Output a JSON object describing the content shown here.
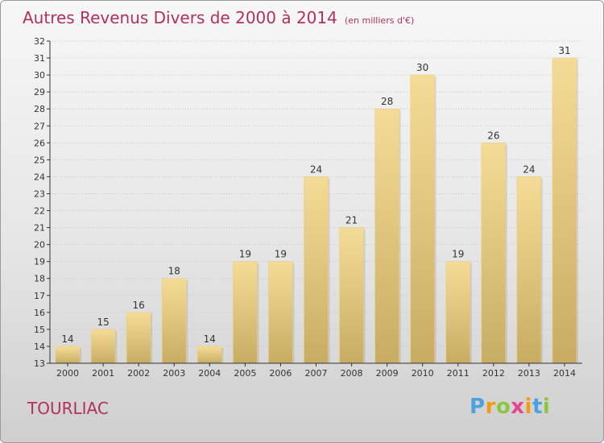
{
  "title": "Autres Revenus Divers de 2000 à 2014",
  "subtitle": "(en milliers d'€)",
  "commune": "TOURLIAC",
  "logo": {
    "text": "Proxiti",
    "letter_colors": [
      "#4aa3df",
      "#f39c12",
      "#8dc63f",
      "#e84393",
      "#f39c12",
      "#4aa3df",
      "#8dc63f"
    ]
  },
  "colors": {
    "title": "#b03060",
    "bar_light": "#f5dc96",
    "bar_dark": "#c8ac64",
    "axis": "#333333",
    "grid": "#c8c8c8"
  },
  "chart_data": {
    "type": "bar",
    "categories": [
      "2000",
      "2001",
      "2002",
      "2003",
      "2004",
      "2005",
      "2006",
      "2007",
      "2008",
      "2009",
      "2010",
      "2011",
      "2012",
      "2013",
      "2014"
    ],
    "values": [
      14,
      15,
      16,
      18,
      14,
      19,
      19,
      24,
      21,
      28,
      30,
      19,
      26,
      24,
      31
    ],
    "ylim": [
      13,
      32
    ],
    "yticks": [
      13,
      14,
      15,
      16,
      17,
      18,
      19,
      20,
      21,
      22,
      23,
      24,
      25,
      26,
      27,
      28,
      29,
      30,
      31,
      32
    ],
    "data_labels": true,
    "grid": true
  }
}
